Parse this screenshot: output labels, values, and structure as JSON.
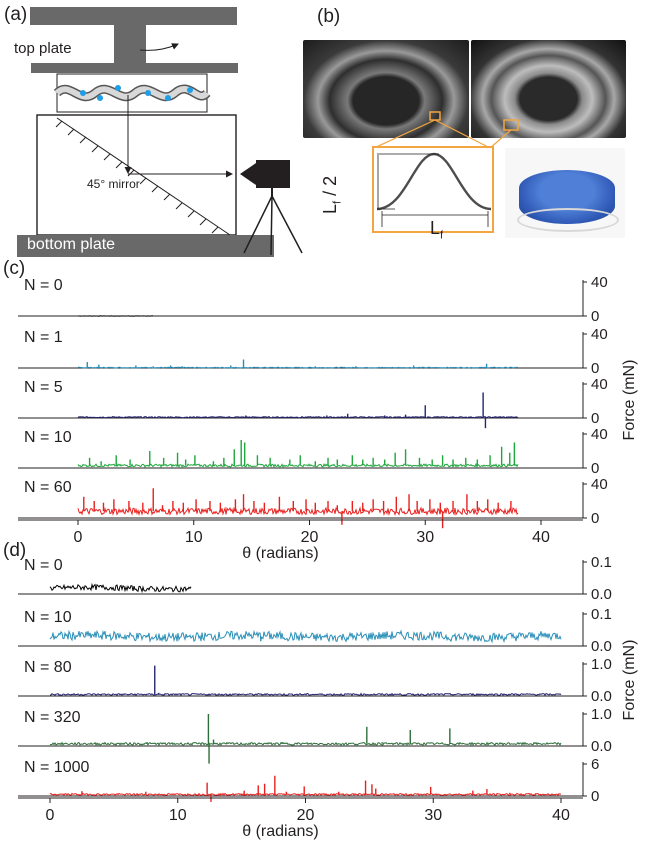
{
  "panel_a": {
    "label": "(a)",
    "top_plate_label": "top plate",
    "mirror_label": "45° mirror",
    "bottom_plate_label": "bottom plate"
  },
  "panel_b": {
    "label": "(b)",
    "height_label": "L_f / 2",
    "width_label": "L_f"
  },
  "chart_data": [
    {
      "panel": "(c)",
      "type": "line",
      "xlabel": "θ (radians)",
      "ylabel": "Force (mN)",
      "xlim": [
        -2,
        45
      ],
      "xticks": [
        0,
        10,
        20,
        30,
        40
      ],
      "series": [
        {
          "name": "N = 0",
          "color": "#000000",
          "x_end": 6.5,
          "ylim": [
            0,
            40
          ],
          "yticks": [
            0,
            40
          ],
          "baseline": 0,
          "spikes": []
        },
        {
          "name": "N = 1",
          "color": "#2a8fb8",
          "x_end": 38,
          "ylim": [
            0,
            40
          ],
          "yticks": [
            0,
            40
          ],
          "baseline": 0.5,
          "spikes": [
            [
              0.8,
              7
            ],
            [
              1.8,
              4
            ],
            [
              5,
              3
            ],
            [
              6.5,
              2
            ],
            [
              8,
              3
            ],
            [
              9,
              2
            ],
            [
              13.2,
              3
            ],
            [
              14.3,
              10
            ],
            [
              20.5,
              2
            ],
            [
              24,
              2
            ],
            [
              29,
              3
            ],
            [
              35.3,
              5
            ]
          ]
        },
        {
          "name": "N = 5",
          "color": "#262673",
          "x_end": 38,
          "ylim": [
            0,
            40
          ],
          "yticks": [
            0,
            40
          ],
          "baseline": 1,
          "spikes": [
            [
              3,
              2
            ],
            [
              8,
              2
            ],
            [
              14.5,
              3
            ],
            [
              16,
              2
            ],
            [
              21.5,
              3
            ],
            [
              23.3,
              5
            ],
            [
              26.5,
              3
            ],
            [
              28.3,
              4
            ],
            [
              30,
              15
            ],
            [
              31,
              2
            ],
            [
              35,
              30
            ],
            [
              35.2,
              -12
            ],
            [
              36.5,
              2
            ]
          ]
        },
        {
          "name": "N = 10",
          "color": "#1ea73c",
          "x_end": 38,
          "ylim": [
            0,
            40
          ],
          "yticks": [
            0,
            40
          ],
          "baseline": 3,
          "spikes": [
            [
              1.0,
              12
            ],
            [
              2.0,
              8
            ],
            [
              3.3,
              15
            ],
            [
              4.5,
              10
            ],
            [
              6.2,
              20
            ],
            [
              7.4,
              12
            ],
            [
              8.6,
              18
            ],
            [
              9.3,
              10
            ],
            [
              10.1,
              15
            ],
            [
              11.7,
              8
            ],
            [
              12.6,
              12
            ],
            [
              13.5,
              22
            ],
            [
              14.1,
              33
            ],
            [
              14.4,
              30
            ],
            [
              15.5,
              15
            ],
            [
              16.6,
              12
            ],
            [
              18.3,
              10
            ],
            [
              19.2,
              15
            ],
            [
              20.5,
              8
            ],
            [
              21.6,
              12
            ],
            [
              22.4,
              10
            ],
            [
              23.7,
              15
            ],
            [
              24.6,
              10
            ],
            [
              25.5,
              12
            ],
            [
              26.5,
              10
            ],
            [
              27.4,
              18
            ],
            [
              28.3,
              22
            ],
            [
              29.5,
              12
            ],
            [
              30.6,
              10
            ],
            [
              31.5,
              15
            ],
            [
              32.4,
              10
            ],
            [
              33.5,
              12
            ],
            [
              34.5,
              10
            ],
            [
              35.6,
              15
            ],
            [
              36.6,
              25
            ],
            [
              37.3,
              18
            ],
            [
              37.7,
              30
            ]
          ]
        },
        {
          "name": "N = 60",
          "color": "#e8201e",
          "x_end": 38,
          "ylim": [
            0,
            40
          ],
          "yticks": [
            0,
            40
          ],
          "baseline": 8,
          "spikes": [
            [
              0.5,
              25
            ],
            [
              1.4,
              20
            ],
            [
              2.2,
              18
            ],
            [
              3.1,
              22
            ],
            [
              4.4,
              20
            ],
            [
              5.6,
              18
            ],
            [
              6.5,
              35
            ],
            [
              7.3,
              15
            ],
            [
              8.2,
              20
            ],
            [
              9.1,
              18
            ],
            [
              10.2,
              22
            ],
            [
              11.4,
              20
            ],
            [
              12.3,
              18
            ],
            [
              13.6,
              22
            ],
            [
              14.3,
              28
            ],
            [
              15.2,
              20
            ],
            [
              16.1,
              18
            ],
            [
              17.4,
              25
            ],
            [
              18.6,
              20
            ],
            [
              19.7,
              22
            ],
            [
              20.5,
              18
            ],
            [
              21.6,
              20
            ],
            [
              22.4,
              15
            ],
            [
              22.8,
              -8
            ],
            [
              23.7,
              20
            ],
            [
              24.6,
              18
            ],
            [
              25.5,
              22
            ],
            [
              26.4,
              20
            ],
            [
              27.5,
              25
            ],
            [
              28.6,
              28
            ],
            [
              29.3,
              20
            ],
            [
              30.4,
              22
            ],
            [
              31.3,
              18
            ],
            [
              31.5,
              -12
            ],
            [
              32.4,
              20
            ],
            [
              33.6,
              28
            ],
            [
              34.5,
              20
            ],
            [
              35.4,
              22
            ],
            [
              36.3,
              18
            ],
            [
              37.4,
              20
            ]
          ]
        }
      ]
    },
    {
      "panel": "(d)",
      "type": "line",
      "xlabel": "θ (radians)",
      "ylabel": "Force (mN)",
      "xlim": [
        -0.5,
        42
      ],
      "xticks": [
        0,
        10,
        20,
        30,
        40
      ],
      "series": [
        {
          "name": "N = 0",
          "color": "#000000",
          "x_end": 11,
          "ylim": [
            0,
            0.1
          ],
          "yticks": [
            0.0,
            0.1
          ],
          "baseline": 0.018,
          "spikes": []
        },
        {
          "name": "N = 10",
          "color": "#2a8fb8",
          "x_end": 40,
          "ylim": [
            0,
            0.1
          ],
          "yticks": [
            0.0,
            0.1
          ],
          "baseline": 0.03,
          "spikes": [
            [
              16.5,
              0.015
            ]
          ]
        },
        {
          "name": "N = 80",
          "color": "#262673",
          "x_end": 40,
          "ylim": [
            0,
            1.0
          ],
          "yticks": [
            0.0,
            1.0
          ],
          "baseline": 0.05,
          "spikes": [
            [
              8.2,
              0.95
            ],
            [
              8.5,
              0.1
            ]
          ]
        },
        {
          "name": "N = 320",
          "color": "#2e6e3b",
          "x_end": 40,
          "ylim": [
            0,
            1.0
          ],
          "yticks": [
            0.0,
            1.0
          ],
          "baseline": 0.07,
          "spikes": [
            [
              7.6,
              0.12
            ],
            [
              12.4,
              1.0
            ],
            [
              12.45,
              -0.55
            ],
            [
              12.8,
              0.2
            ],
            [
              18.2,
              0.12
            ],
            [
              24.8,
              0.6
            ],
            [
              26,
              0.12
            ],
            [
              28.2,
              0.5
            ],
            [
              31.3,
              0.55
            ],
            [
              35,
              0.1
            ]
          ]
        },
        {
          "name": "N = 1000",
          "color": "#e8201e",
          "x_end": 40,
          "ylim": [
            0,
            6
          ],
          "yticks": [
            0,
            6
          ],
          "baseline": 0.3,
          "spikes": [
            [
              2.5,
              0.9
            ],
            [
              7.5,
              0.8
            ],
            [
              12.3,
              2.5
            ],
            [
              12.6,
              -1.1
            ],
            [
              15.2,
              1.0
            ],
            [
              16.3,
              2.0
            ],
            [
              16.8,
              2.3
            ],
            [
              17.6,
              3.8
            ],
            [
              18.5,
              0.8
            ],
            [
              19.9,
              1.8
            ],
            [
              22.6,
              0.8
            ],
            [
              24.7,
              2.9
            ],
            [
              25.2,
              2.2
            ],
            [
              25.5,
              1.4
            ],
            [
              29.8,
              1.7
            ],
            [
              33.1,
              1.0
            ],
            [
              34.2,
              1.3
            ],
            [
              36,
              0.6
            ],
            [
              38,
              0.5
            ]
          ]
        }
      ]
    }
  ]
}
